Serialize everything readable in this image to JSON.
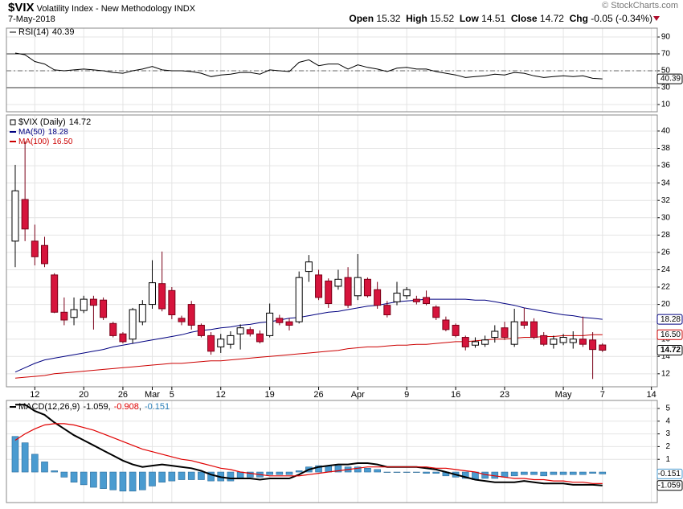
{
  "header": {
    "symbol": "$VIX",
    "name": "Volatility Index - New Methodology INDX",
    "date": "7-May-2018",
    "copyright": "© StockCharts.com",
    "labels": {
      "open": "Open",
      "high": "High",
      "low": "Low",
      "close": "Close",
      "change": "Chg"
    },
    "change": -0.05,
    "change_pct": {
      "value": -0.34,
      "label": "(-0.34%)"
    }
  },
  "chart_data": [
    {
      "type": "line",
      "series": [
        {
          "name": "RSI(14)",
          "color": "#000000",
          "values": [
            71,
            69,
            61,
            58,
            51,
            50,
            51,
            52,
            51,
            50,
            48,
            47,
            50,
            52,
            55,
            51,
            50,
            50,
            49,
            47,
            43,
            45,
            46,
            48,
            48,
            46,
            51,
            50,
            49,
            60,
            63,
            56,
            58,
            58,
            52,
            57,
            54,
            52,
            49,
            53,
            54,
            52,
            52,
            49,
            47,
            45,
            42,
            43,
            44,
            46,
            45,
            48,
            47,
            44,
            42,
            43,
            44,
            43,
            44,
            41,
            40.39
          ]
        }
      ],
      "ylim": [
        1.4,
        100.5
      ],
      "yticks": [
        10,
        30,
        50,
        70,
        90
      ],
      "reference_lines": [
        30,
        50,
        70
      ],
      "reference_styles": [
        "solid",
        "dashed",
        "solid"
      ],
      "grid": true
    },
    {
      "type": "candlestick",
      "title": "$VIX (Daily)",
      "open": [
        27.3,
        32.1,
        27.3,
        26.8,
        23.4,
        19.1,
        18.5,
        19.3,
        20.6,
        20.5,
        17.8,
        16.6,
        16.0,
        18.0,
        20.0,
        22.4,
        21.6,
        18.4,
        20.0,
        17.6,
        16.4,
        15.1,
        15.4,
        16.6,
        17.1,
        16.6,
        16.4,
        18.4,
        18.0,
        18.0,
        23.8,
        23.4,
        22.7,
        22.1,
        23.1,
        21.0,
        22.9,
        21.7,
        19.9,
        20.3,
        21.0,
        20.6,
        20.8,
        19.7,
        18.2,
        17.6,
        16.2,
        15.3,
        15.4,
        16.2,
        17.3,
        15.4,
        18.0,
        18.0,
        16.4,
        15.4,
        15.6,
        15.6,
        16.0,
        15.9,
        15.32
      ],
      "high": [
        36.1,
        38.8,
        29.2,
        27.8,
        23.6,
        20.8,
        20.8,
        21.0,
        21.0,
        20.8,
        18.0,
        16.8,
        19.6,
        20.5,
        25.1,
        26.1,
        22.0,
        18.7,
        20.4,
        17.8,
        16.8,
        16.6,
        16.9,
        17.7,
        17.4,
        17.0,
        20.1,
        18.8,
        18.4,
        23.8,
        25.7,
        24.0,
        23.0,
        24.0,
        24.3,
        25.8,
        23.1,
        22.6,
        20.4,
        22.6,
        22.0,
        21.0,
        21.6,
        19.9,
        18.6,
        17.8,
        16.4,
        16.2,
        16.4,
        17.6,
        18.0,
        19.5,
        19.6,
        18.4,
        16.8,
        16.4,
        16.6,
        16.9,
        18.6,
        16.8,
        15.52
      ],
      "low": [
        24.3,
        27.3,
        24.5,
        24.3,
        19.0,
        17.6,
        17.6,
        19.0,
        17.1,
        18.2,
        16.2,
        15.5,
        15.5,
        17.6,
        19.5,
        19.2,
        18.3,
        17.6,
        17.1,
        16.2,
        14.2,
        14.4,
        14.9,
        14.8,
        16.3,
        15.5,
        16.2,
        17.6,
        17.0,
        17.8,
        22.6,
        20.5,
        19.6,
        21.7,
        19.6,
        20.5,
        20.8,
        19.5,
        18.5,
        19.9,
        20.6,
        20.0,
        19.9,
        18.2,
        16.9,
        16.2,
        14.7,
        15.0,
        15.1,
        15.6,
        15.9,
        15.1,
        17.2,
        16.0,
        15.2,
        14.9,
        15.3,
        14.9,
        15.1,
        11.4,
        14.51
      ],
      "close": [
        33.1,
        28.7,
        25.5,
        24.7,
        19.1,
        18.2,
        19.4,
        20.6,
        19.9,
        18.5,
        16.4,
        15.7,
        19.4,
        20.0,
        22.5,
        19.5,
        18.8,
        18.0,
        17.6,
        16.4,
        14.6,
        16.0,
        16.4,
        17.3,
        16.6,
        15.7,
        19.0,
        17.9,
        17.6,
        23.1,
        24.9,
        20.8,
        20.1,
        22.9,
        19.9,
        23.1,
        21.0,
        19.9,
        18.8,
        21.3,
        21.7,
        20.3,
        20.1,
        18.5,
        17.1,
        16.4,
        15.1,
        15.7,
        15.9,
        16.9,
        16.2,
        18.0,
        17.6,
        16.2,
        15.4,
        16.0,
        16.2,
        16.0,
        15.4,
        14.8,
        14.72
      ],
      "up_color": "#ffffff",
      "down_color": "#d6143c",
      "series": [
        {
          "name": "MA(50)",
          "color": "#000080",
          "values": [
            12.2,
            12.7,
            13.2,
            13.6,
            13.8,
            14.0,
            14.2,
            14.4,
            14.6,
            14.8,
            15.1,
            15.3,
            15.5,
            15.7,
            15.9,
            16.1,
            16.3,
            16.5,
            16.8,
            17.0,
            17.1,
            17.3,
            17.4,
            17.6,
            17.7,
            17.9,
            18.0,
            18.2,
            18.4,
            18.5,
            18.7,
            18.9,
            19.1,
            19.2,
            19.4,
            19.6,
            19.8,
            19.9,
            20.1,
            20.3,
            20.4,
            20.5,
            20.6,
            20.6,
            20.6,
            20.6,
            20.6,
            20.5,
            20.5,
            20.3,
            20.1,
            19.9,
            19.6,
            19.4,
            19.2,
            19.0,
            18.8,
            18.7,
            18.5,
            18.4,
            18.28
          ]
        },
        {
          "name": "MA(100)",
          "color": "#cc0000",
          "last_label": "16.50",
          "values": [
            11.5,
            11.6,
            11.7,
            11.8,
            12.0,
            12.1,
            12.2,
            12.3,
            12.4,
            12.5,
            12.6,
            12.7,
            12.8,
            12.9,
            13.0,
            13.1,
            13.2,
            13.2,
            13.3,
            13.4,
            13.5,
            13.5,
            13.6,
            13.7,
            13.8,
            13.9,
            14.0,
            14.1,
            14.2,
            14.3,
            14.4,
            14.5,
            14.6,
            14.7,
            14.9,
            15.0,
            15.1,
            15.1,
            15.2,
            15.3,
            15.3,
            15.4,
            15.4,
            15.5,
            15.6,
            15.7,
            15.7,
            15.8,
            15.9,
            16.0,
            16.0,
            16.1,
            16.2,
            16.2,
            16.3,
            16.3,
            16.4,
            16.4,
            16.4,
            16.5,
            16.5
          ]
        }
      ],
      "xlim": [
        -0.9,
        65.6
      ],
      "xticks": [
        {
          "value": 2,
          "label": "12"
        },
        {
          "value": 7,
          "label": "20"
        },
        {
          "value": 11,
          "label": "26"
        },
        {
          "value": 14,
          "label": "Mar"
        },
        {
          "value": 16,
          "label": "5"
        },
        {
          "value": 21,
          "label": "12"
        },
        {
          "value": 26,
          "label": "19"
        },
        {
          "value": 31,
          "label": "26"
        },
        {
          "value": 35,
          "label": "Apr"
        },
        {
          "value": 40,
          "label": "9"
        },
        {
          "value": 45,
          "label": "16"
        },
        {
          "value": 50,
          "label": "23"
        },
        {
          "value": 56,
          "label": "May"
        },
        {
          "value": 60,
          "label": "7"
        },
        {
          "value": 65,
          "label": "14"
        }
      ],
      "ylim": [
        10.5,
        41.85
      ],
      "yticks": [
        12,
        14,
        16,
        18,
        20,
        22,
        24,
        26,
        28,
        30,
        32,
        34,
        36,
        38,
        40
      ],
      "grid": true
    },
    {
      "type": "macd",
      "title": "MACD(12,26,9)",
      "series": [
        {
          "style": "line",
          "color": "#000000",
          "values": [
            5.3,
            5.3,
            4.8,
            4.5,
            3.9,
            3.4,
            2.9,
            2.5,
            2.1,
            1.7,
            1.3,
            0.9,
            0.6,
            0.4,
            0.5,
            0.6,
            0.5,
            0.4,
            0.3,
            0.1,
            -0.2,
            -0.4,
            -0.5,
            -0.5,
            -0.5,
            -0.6,
            -0.5,
            -0.5,
            -0.5,
            -0.2,
            0.2,
            0.4,
            0.5,
            0.6,
            0.6,
            0.7,
            0.7,
            0.6,
            0.4,
            0.4,
            0.4,
            0.4,
            0.3,
            0.2,
            0,
            -0.2,
            -0.4,
            -0.6,
            -0.7,
            -0.8,
            -0.8,
            -0.8,
            -0.7,
            -0.8,
            -0.9,
            -0.9,
            -0.9,
            -1.0,
            -1.0,
            -1.0,
            -1.059
          ]
        },
        {
          "style": "line",
          "color": "#e00000",
          "values": [
            2.5,
            3.0,
            3.4,
            3.7,
            3.8,
            3.8,
            3.7,
            3.5,
            3.3,
            3.0,
            2.7,
            2.4,
            2.1,
            1.8,
            1.6,
            1.4,
            1.2,
            1.0,
            0.9,
            0.7,
            0.5,
            0.3,
            0.2,
            0,
            -0.1,
            -0.2,
            -0.3,
            -0.3,
            -0.3,
            -0.3,
            -0.2,
            -0.1,
            0,
            0.1,
            0.2,
            0.3,
            0.4,
            0.4,
            0.4,
            0.4,
            0.4,
            0.4,
            0.4,
            0.3,
            0.3,
            0.2,
            0.1,
            0,
            -0.2,
            -0.3,
            -0.4,
            -0.5,
            -0.5,
            -0.6,
            -0.6,
            -0.7,
            -0.7,
            -0.8,
            -0.8,
            -0.9,
            -0.908
          ]
        },
        {
          "style": "bar",
          "color": "#4a9bd0",
          "values": [
            2.8,
            2.3,
            1.4,
            0.8,
            0.1,
            -0.4,
            -0.8,
            -1.0,
            -1.2,
            -1.3,
            -1.4,
            -1.5,
            -1.5,
            -1.4,
            -1.1,
            -0.8,
            -0.7,
            -0.6,
            -0.6,
            -0.6,
            -0.7,
            -0.7,
            -0.7,
            -0.5,
            -0.4,
            -0.4,
            -0.2,
            -0.2,
            -0.2,
            0.1,
            0.4,
            0.5,
            0.5,
            0.5,
            0.4,
            0.4,
            0.3,
            0.2,
            0,
            0,
            0,
            0,
            -0.1,
            -0.1,
            -0.3,
            -0.4,
            -0.5,
            -0.6,
            -0.5,
            -0.5,
            -0.4,
            -0.3,
            -0.2,
            -0.2,
            -0.3,
            -0.2,
            -0.2,
            -0.2,
            -0.2,
            -0.1,
            -0.151
          ]
        }
      ],
      "ylim": [
        -2.4,
        5.63
      ],
      "yticks": [
        1,
        2,
        3,
        4,
        5
      ],
      "grid": true
    }
  ]
}
